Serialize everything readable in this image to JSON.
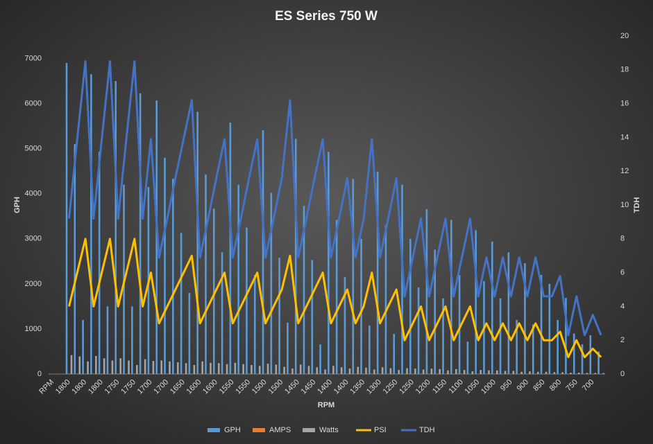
{
  "chart_data": {
    "type": "bar",
    "title": "ES Series 750 W",
    "x_label": "RPM",
    "y_label": "GPH",
    "y2_label": "TDH",
    "categories": [
      "RPM",
      null,
      "1800",
      null,
      "1800",
      null,
      "1800",
      null,
      "1750",
      null,
      "1750",
      null,
      "1700",
      null,
      "1700",
      null,
      "1650",
      null,
      "1600",
      null,
      "1600",
      null,
      "1550",
      null,
      "1550",
      null,
      "1500",
      null,
      "1500",
      null,
      "1450",
      null,
      "1450",
      null,
      "1400",
      null,
      "1400",
      null,
      "1350",
      null,
      "1300",
      null,
      "1250",
      null,
      "1250",
      null,
      "1200",
      null,
      "1150",
      null,
      "1100",
      null,
      "1050",
      null,
      "1000",
      null,
      "950",
      null,
      "900",
      null,
      "850",
      null,
      "800",
      null,
      "750",
      null,
      "700",
      null
    ],
    "series": [
      {
        "name": "GPH",
        "color": "#5b9bd5",
        "values": [
          null,
          null,
          6900,
          5100,
          1200,
          6650,
          4930,
          1500,
          6500,
          4200,
          1500,
          6230,
          4150,
          6070,
          4800,
          4330,
          3130,
          1800,
          5820,
          4430,
          3670,
          2700,
          5580,
          4200,
          3250,
          2200,
          5410,
          4020,
          2580,
          1140,
          5220,
          3730,
          2530,
          660,
          4930,
          3420,
          2150,
          4330,
          3000,
          1080,
          4490,
          3300,
          890,
          4200,
          3000,
          1920,
          3660,
          2760,
          1680,
          3420,
          2200,
          720,
          3190,
          2060,
          2940,
          1680,
          2700,
          1200,
          2460,
          1100,
          2200,
          2000,
          1200,
          1690,
          900,
          660,
          860,
          500
        ]
      },
      {
        "name": "AMPS",
        "color": "#ed7d31",
        "values": [
          null,
          null,
          9,
          9,
          8,
          9,
          8,
          7,
          9,
          8,
          7,
          8,
          7,
          8,
          7,
          7,
          6,
          6,
          7,
          7,
          6,
          6,
          7,
          6,
          6,
          5,
          6,
          6,
          5,
          5,
          6,
          5,
          5,
          4,
          5,
          5,
          4,
          5,
          4,
          4,
          4,
          4,
          3,
          4,
          3,
          3,
          3,
          3,
          3,
          3,
          3,
          2,
          3,
          2,
          3,
          2,
          2,
          2,
          2,
          2,
          2,
          2,
          2,
          1,
          1,
          1,
          1,
          1
        ]
      },
      {
        "name": "Watts",
        "color": "#a5a5a5",
        "values": [
          null,
          null,
          420,
          390,
          280,
          400,
          350,
          300,
          350,
          300,
          200,
          330,
          290,
          300,
          280,
          260,
          240,
          200,
          280,
          250,
          240,
          220,
          250,
          220,
          200,
          180,
          230,
          210,
          160,
          120,
          210,
          180,
          150,
          100,
          180,
          150,
          120,
          160,
          140,
          100,
          150,
          130,
          90,
          130,
          120,
          100,
          120,
          110,
          80,
          110,
          90,
          60,
          90,
          80,
          80,
          70,
          70,
          50,
          60,
          50,
          50,
          40,
          40,
          30,
          30,
          25,
          25,
          20
        ]
      },
      {
        "name": "PSI",
        "color": "#ffc000",
        "type": "line",
        "axis": "y2",
        "values": [
          null,
          null,
          4,
          6,
          8,
          4,
          6,
          8,
          4,
          6,
          8,
          4,
          6,
          3,
          4,
          5,
          6,
          7,
          3,
          4,
          5,
          6,
          3,
          4,
          5,
          6,
          3,
          4,
          5,
          7,
          3,
          4,
          5,
          6,
          3,
          4,
          5,
          3,
          4,
          6,
          3,
          4,
          5,
          2,
          3,
          4,
          2,
          3,
          4,
          2,
          3,
          4,
          2,
          3,
          2,
          3,
          2,
          3,
          2,
          3,
          2,
          2,
          2.5,
          1,
          2,
          1,
          1.5,
          1
        ]
      },
      {
        "name": "TDH",
        "color": "#4472c4",
        "type": "line",
        "axis": "y2",
        "values": [
          null,
          null,
          9.2,
          13.9,
          18.5,
          9.2,
          13.9,
          18.5,
          9.2,
          13.9,
          18.5,
          9.2,
          13.9,
          6.9,
          9.2,
          11.6,
          13.9,
          16.2,
          6.9,
          9.2,
          11.6,
          13.9,
          6.9,
          9.2,
          11.6,
          13.9,
          6.9,
          9.2,
          11.6,
          16.2,
          6.9,
          9.2,
          11.6,
          13.9,
          6.9,
          9.2,
          11.6,
          6.9,
          9.2,
          13.9,
          6.9,
          9.2,
          11.6,
          4.6,
          6.9,
          9.2,
          4.6,
          6.9,
          9.2,
          4.6,
          6.9,
          9.2,
          4.6,
          6.9,
          4.6,
          6.9,
          4.6,
          6.9,
          4.6,
          6.9,
          4.6,
          4.6,
          5.8,
          2.3,
          4.6,
          2.3,
          3.5,
          2.3
        ]
      }
    ],
    "ylim": [
      0,
      7500
    ],
    "yticks": [
      0,
      1000,
      2000,
      3000,
      4000,
      5000,
      6000,
      7000
    ],
    "y2lim": [
      0,
      20
    ],
    "y2ticks": [
      0,
      2,
      4,
      6,
      8,
      10,
      12,
      14,
      16,
      18,
      20
    ],
    "legend": "bottom"
  }
}
